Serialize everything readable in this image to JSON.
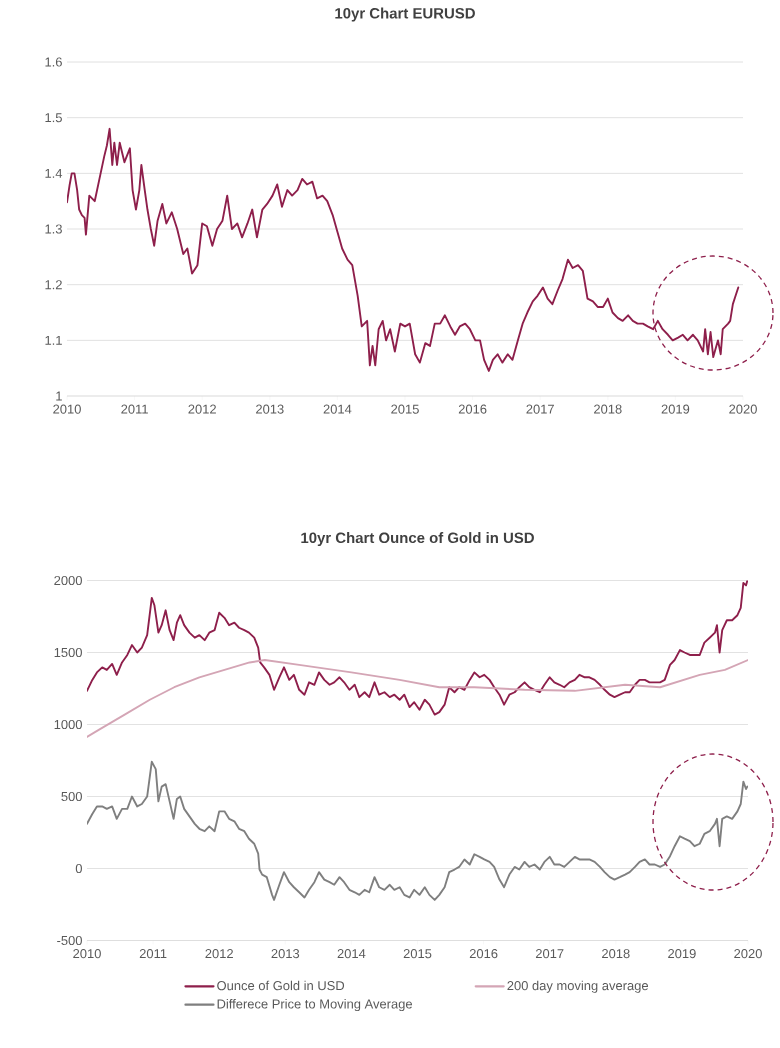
{
  "chart_data": [
    {
      "type": "line",
      "title": "10yr Chart EURUSD",
      "xlim": [
        2010,
        2020
      ],
      "xticks": [
        2010,
        2011,
        2012,
        2013,
        2014,
        2015,
        2016,
        2017,
        2018,
        2019,
        2020
      ],
      "ylim": [
        1,
        1.6
      ],
      "yticks": [
        1,
        1.1,
        1.2,
        1.3,
        1.4,
        1.5,
        1.6
      ],
      "grid": "y",
      "line_style": "solid",
      "series": [
        {
          "color": "#8e1f4b",
          "x": [
            2010.0,
            2010.04,
            2010.07,
            2010.11,
            2010.15,
            2010.18,
            2010.22,
            2010.26,
            2010.28,
            2010.33,
            2010.41,
            2010.48,
            2010.55,
            2010.59,
            2010.63,
            2010.67,
            2010.7,
            2010.74,
            2010.78,
            2010.85,
            2010.93,
            2010.97,
            2011.02,
            2011.07,
            2011.1,
            2011.15,
            2011.19,
            2011.24,
            2011.29,
            2011.34,
            2011.41,
            2011.47,
            2011.55,
            2011.63,
            2011.72,
            2011.78,
            2011.85,
            2011.93,
            2012.0,
            2012.07,
            2012.15,
            2012.22,
            2012.3,
            2012.37,
            2012.44,
            2012.52,
            2012.59,
            2012.67,
            2012.74,
            2012.81,
            2012.89,
            2012.96,
            2013.04,
            2013.11,
            2013.18,
            2013.26,
            2013.33,
            2013.41,
            2013.48,
            2013.55,
            2013.63,
            2013.7,
            2013.78,
            2013.85,
            2013.93,
            2014.0,
            2014.07,
            2014.15,
            2014.22,
            2014.3,
            2014.36,
            2014.44,
            2014.48,
            2014.52,
            2014.56,
            2014.61,
            2014.67,
            2014.72,
            2014.78,
            2014.85,
            2014.93,
            2015.0,
            2015.07,
            2015.15,
            2015.22,
            2015.3,
            2015.37,
            2015.44,
            2015.52,
            2015.59,
            2015.67,
            2015.74,
            2015.81,
            2015.89,
            2015.96,
            2016.04,
            2016.11,
            2016.17,
            2016.24,
            2016.3,
            2016.37,
            2016.44,
            2016.52,
            2016.59,
            2016.67,
            2016.74,
            2016.81,
            2016.89,
            2016.96,
            2017.04,
            2017.11,
            2017.18,
            2017.26,
            2017.33,
            2017.41,
            2017.48,
            2017.56,
            2017.63,
            2017.7,
            2017.78,
            2017.85,
            2017.93,
            2018.0,
            2018.07,
            2018.15,
            2018.22,
            2018.3,
            2018.37,
            2018.44,
            2018.52,
            2018.59,
            2018.67,
            2018.74,
            2018.81,
            2018.89,
            2018.96,
            2019.04,
            2019.11,
            2019.18,
            2019.26,
            2019.33,
            2019.41,
            2019.44,
            2019.48,
            2019.52,
            2019.56,
            2019.63,
            2019.67,
            2019.7,
            2019.74,
            2019.78,
            2019.81,
            2019.85,
            2019.89,
            2019.93
          ],
          "values": [
            1.348,
            1.38,
            1.4,
            1.4,
            1.37,
            1.335,
            1.325,
            1.32,
            1.29,
            1.36,
            1.35,
            1.39,
            1.43,
            1.45,
            1.48,
            1.415,
            1.455,
            1.415,
            1.455,
            1.42,
            1.445,
            1.37,
            1.335,
            1.37,
            1.415,
            1.37,
            1.335,
            1.3,
            1.27,
            1.315,
            1.345,
            1.31,
            1.33,
            1.3,
            1.255,
            1.265,
            1.22,
            1.235,
            1.31,
            1.305,
            1.27,
            1.3,
            1.315,
            1.36,
            1.3,
            1.31,
            1.285,
            1.31,
            1.335,
            1.285,
            1.335,
            1.345,
            1.36,
            1.38,
            1.34,
            1.37,
            1.36,
            1.37,
            1.39,
            1.38,
            1.385,
            1.355,
            1.36,
            1.35,
            1.325,
            1.295,
            1.265,
            1.245,
            1.235,
            1.18,
            1.125,
            1.135,
            1.055,
            1.09,
            1.055,
            1.12,
            1.135,
            1.1,
            1.12,
            1.08,
            1.13,
            1.125,
            1.13,
            1.075,
            1.06,
            1.095,
            1.09,
            1.13,
            1.13,
            1.145,
            1.125,
            1.11,
            1.125,
            1.13,
            1.12,
            1.1,
            1.1,
            1.065,
            1.045,
            1.065,
            1.075,
            1.06,
            1.075,
            1.065,
            1.1,
            1.13,
            1.15,
            1.17,
            1.18,
            1.195,
            1.175,
            1.165,
            1.19,
            1.21,
            1.245,
            1.23,
            1.235,
            1.225,
            1.175,
            1.17,
            1.16,
            1.16,
            1.175,
            1.15,
            1.14,
            1.135,
            1.145,
            1.135,
            1.13,
            1.13,
            1.125,
            1.12,
            1.135,
            1.12,
            1.11,
            1.1,
            1.105,
            1.11,
            1.1,
            1.11,
            1.1,
            1.08,
            1.12,
            1.075,
            1.115,
            1.07,
            1.1,
            1.075,
            1.12,
            1.125,
            1.13,
            1.135,
            1.165,
            1.18,
            1.195
          ]
        }
      ]
    },
    {
      "type": "line",
      "title": "10yr Chart Ounce of Gold in USD",
      "xlim": [
        2010,
        2020
      ],
      "xticks": [
        2010,
        2011,
        2012,
        2013,
        2014,
        2015,
        2016,
        2017,
        2018,
        2019,
        2020
      ],
      "ylim": [
        -500,
        2000
      ],
      "yticks": [
        -500,
        0,
        500,
        1000,
        1500,
        2000
      ],
      "grid": "y",
      "legend": "bottom",
      "line_style": "solid",
      "series": [
        {
          "name": "Ounce of Gold in USD",
          "color": "#8e1f4b",
          "x": [
            2010.0,
            2010.08,
            2010.15,
            2010.23,
            2010.3,
            2010.38,
            2010.45,
            2010.53,
            2010.61,
            2010.68,
            2010.76,
            2010.83,
            2010.91,
            2010.98,
            2011.02,
            2011.08,
            2011.13,
            2011.19,
            2011.25,
            2011.31,
            2011.36,
            2011.41,
            2011.47,
            2011.55,
            2011.63,
            2011.7,
            2011.78,
            2011.85,
            2011.93,
            2012.0,
            2012.08,
            2012.15,
            2012.23,
            2012.3,
            2012.38,
            2012.45,
            2012.53,
            2012.59,
            2012.62,
            2012.68,
            2012.76,
            2012.83,
            2012.91,
            2012.98,
            2013.06,
            2013.13,
            2013.21,
            2013.29,
            2013.36,
            2013.44,
            2013.51,
            2013.59,
            2013.67,
            2013.74,
            2013.82,
            2013.89,
            2013.97,
            2014.05,
            2014.12,
            2014.2,
            2014.27,
            2014.35,
            2014.42,
            2014.5,
            2014.58,
            2014.65,
            2014.73,
            2014.8,
            2014.88,
            2014.95,
            2015.03,
            2015.11,
            2015.18,
            2015.26,
            2015.33,
            2015.41,
            2015.48,
            2015.56,
            2015.63,
            2015.71,
            2015.79,
            2015.86,
            2015.94,
            2016.01,
            2016.09,
            2016.16,
            2016.24,
            2016.31,
            2016.39,
            2016.47,
            2016.54,
            2016.62,
            2016.69,
            2016.77,
            2016.85,
            2016.92,
            2017.0,
            2017.07,
            2017.15,
            2017.22,
            2017.3,
            2017.38,
            2017.45,
            2017.53,
            2017.6,
            2017.68,
            2017.76,
            2017.83,
            2017.91,
            2017.98,
            2018.06,
            2018.14,
            2018.21,
            2018.29,
            2018.36,
            2018.44,
            2018.51,
            2018.59,
            2018.67,
            2018.74,
            2018.82,
            2018.89,
            2018.97,
            2019.04,
            2019.12,
            2019.19,
            2019.27,
            2019.34,
            2019.42,
            2019.5,
            2019.53,
            2019.57,
            2019.61,
            2019.68,
            2019.76,
            2019.84,
            2019.89,
            2019.93,
            2019.97,
            2019.99
          ],
          "values": [
            1234,
            1310,
            1362,
            1397,
            1379,
            1421,
            1345,
            1431,
            1483,
            1552,
            1500,
            1534,
            1621,
            1879,
            1828,
            1638,
            1690,
            1793,
            1655,
            1586,
            1707,
            1759,
            1690,
            1638,
            1603,
            1621,
            1586,
            1638,
            1655,
            1776,
            1741,
            1690,
            1707,
            1672,
            1655,
            1638,
            1603,
            1534,
            1431,
            1397,
            1345,
            1241,
            1328,
            1397,
            1310,
            1345,
            1241,
            1207,
            1293,
            1276,
            1362,
            1310,
            1276,
            1293,
            1328,
            1293,
            1241,
            1276,
            1190,
            1224,
            1190,
            1293,
            1207,
            1224,
            1190,
            1207,
            1172,
            1207,
            1121,
            1155,
            1103,
            1172,
            1138,
            1069,
            1086,
            1138,
            1259,
            1224,
            1259,
            1241,
            1310,
            1362,
            1328,
            1345,
            1310,
            1259,
            1207,
            1138,
            1207,
            1224,
            1259,
            1293,
            1259,
            1241,
            1224,
            1276,
            1328,
            1293,
            1276,
            1259,
            1293,
            1310,
            1345,
            1328,
            1328,
            1310,
            1276,
            1241,
            1207,
            1190,
            1207,
            1224,
            1224,
            1276,
            1310,
            1310,
            1293,
            1293,
            1293,
            1310,
            1414,
            1448,
            1517,
            1500,
            1483,
            1483,
            1483,
            1569,
            1603,
            1638,
            1690,
            1500,
            1655,
            1724,
            1724,
            1759,
            1810,
            1983,
            1966,
            2000
          ]
        },
        {
          "name": "200 day moving average",
          "color": "#d4a5b5",
          "x": [
            2010.0,
            2010.19,
            2010.57,
            2010.95,
            2011.32,
            2011.7,
            2012.08,
            2012.46,
            2012.69,
            2013.21,
            2014.0,
            2014.73,
            2015.33,
            2015.86,
            2016.62,
            2017.38,
            2018.14,
            2018.67,
            2019.27,
            2019.65,
            2020.0
          ],
          "values": [
            914,
            966,
            1069,
            1172,
            1259,
            1328,
            1379,
            1431,
            1448,
            1414,
            1362,
            1310,
            1259,
            1259,
            1241,
            1234,
            1276,
            1259,
            1345,
            1379,
            1448
          ]
        },
        {
          "name": "Differece Price to Moving Average",
          "color": "#7f7f7f",
          "x": [
            2010.0,
            2010.08,
            2010.15,
            2010.23,
            2010.3,
            2010.38,
            2010.45,
            2010.53,
            2010.61,
            2010.68,
            2010.76,
            2010.83,
            2010.91,
            2010.98,
            2011.04,
            2011.08,
            2011.13,
            2011.19,
            2011.25,
            2011.31,
            2011.36,
            2011.41,
            2011.47,
            2011.55,
            2011.63,
            2011.7,
            2011.78,
            2011.85,
            2011.93,
            2012.0,
            2012.08,
            2012.15,
            2012.23,
            2012.3,
            2012.38,
            2012.45,
            2012.53,
            2012.59,
            2012.61,
            2012.65,
            2012.72,
            2012.8,
            2012.83,
            2012.91,
            2012.98,
            2013.06,
            2013.13,
            2013.21,
            2013.29,
            2013.36,
            2013.44,
            2013.51,
            2013.59,
            2013.67,
            2013.74,
            2013.82,
            2013.89,
            2013.97,
            2014.05,
            2014.12,
            2014.2,
            2014.27,
            2014.35,
            2014.42,
            2014.5,
            2014.58,
            2014.65,
            2014.73,
            2014.8,
            2014.88,
            2014.95,
            2015.03,
            2015.11,
            2015.18,
            2015.26,
            2015.33,
            2015.41,
            2015.48,
            2015.56,
            2015.63,
            2015.71,
            2015.79,
            2015.86,
            2015.94,
            2016.01,
            2016.09,
            2016.16,
            2016.24,
            2016.31,
            2016.39,
            2016.47,
            2016.54,
            2016.62,
            2016.69,
            2016.77,
            2016.85,
            2016.92,
            2017.0,
            2017.07,
            2017.15,
            2017.22,
            2017.3,
            2017.38,
            2017.45,
            2017.53,
            2017.6,
            2017.68,
            2017.76,
            2017.83,
            2017.91,
            2017.98,
            2018.06,
            2018.14,
            2018.21,
            2018.29,
            2018.36,
            2018.44,
            2018.51,
            2018.59,
            2018.67,
            2018.74,
            2018.82,
            2018.89,
            2018.97,
            2019.04,
            2019.12,
            2019.19,
            2019.27,
            2019.34,
            2019.42,
            2019.5,
            2019.53,
            2019.57,
            2019.61,
            2019.68,
            2019.76,
            2019.84,
            2019.89,
            2019.93,
            2019.97,
            2019.99
          ],
          "values": [
            310,
            379,
            431,
            431,
            414,
            431,
            345,
            414,
            414,
            500,
            431,
            448,
            500,
            741,
            690,
            466,
            569,
            586,
            466,
            345,
            483,
            500,
            414,
            362,
            310,
            276,
            259,
            293,
            259,
            397,
            397,
            345,
            328,
            276,
            259,
            207,
            172,
            103,
            -7,
            -42,
            -60,
            -183,
            -218,
            -113,
            -25,
            -95,
            -130,
            -165,
            -201,
            -148,
            -95,
            -25,
            -77,
            -95,
            -113,
            -60,
            -95,
            -148,
            -165,
            -183,
            -148,
            -165,
            -60,
            -130,
            -148,
            -113,
            -148,
            -130,
            -183,
            -201,
            -148,
            -183,
            -130,
            -183,
            -218,
            -183,
            -130,
            -25,
            -7,
            11,
            63,
            28,
            99,
            81,
            63,
            46,
            11,
            -77,
            -130,
            -42,
            11,
            -7,
            46,
            11,
            28,
            -7,
            46,
            81,
            28,
            28,
            11,
            46,
            81,
            63,
            63,
            63,
            46,
            11,
            -25,
            -60,
            -77,
            -60,
            -42,
            -25,
            11,
            46,
            63,
            28,
            28,
            11,
            28,
            86,
            155,
            224,
            207,
            190,
            155,
            172,
            241,
            259,
            310,
            345,
            155,
            345,
            362,
            345,
            397,
            448,
            603,
            552,
            569
          ]
        }
      ]
    }
  ]
}
